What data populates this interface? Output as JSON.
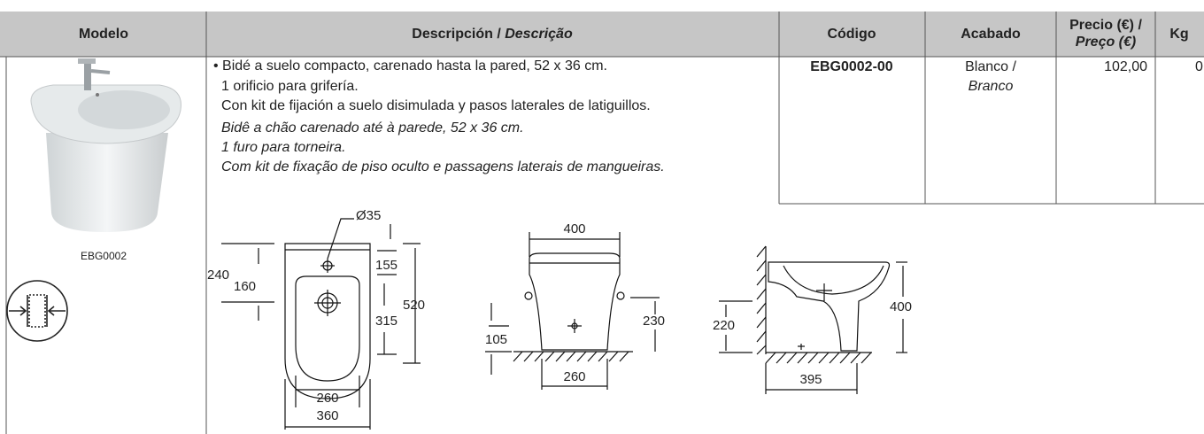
{
  "table": {
    "headers": {
      "model": "Modelo",
      "description": {
        "es": "Descripción /",
        "pt": "Descrição"
      },
      "code": "Código",
      "finish": "Acabado",
      "price": {
        "es": "Precio (€) /",
        "pt": "Preço (€)"
      },
      "kg": "Kg"
    },
    "rows": [
      {
        "model": "EBG0002",
        "description": {
          "es": [
            "• Bidé a suelo compacto, carenado hasta la pared, 52 x 36 cm.",
            "1 orificio para grifería.",
            "Con kit de fijación a suelo disimulada y pasos laterales de latiguillos."
          ],
          "pt": [
            "Bidê a chão carenado até à parede, 52 x 36 cm.",
            "1 furo para torneira.",
            "Com kit de fixação de piso oculto e passagens laterais de mangueiras."
          ]
        },
        "code": "EBG0002-00",
        "finish": {
          "es": "Blanco /",
          "pt": "Branco"
        },
        "price": "102,00",
        "kg": "0"
      }
    ]
  },
  "drawings": [
    {
      "dims": [
        "Ø35",
        "240",
        "160",
        "155",
        "315",
        "520",
        "260",
        "360"
      ]
    },
    {
      "dims": [
        "400",
        "105",
        "230",
        "260"
      ]
    },
    {
      "dims": [
        "220",
        "400",
        "395"
      ]
    }
  ]
}
